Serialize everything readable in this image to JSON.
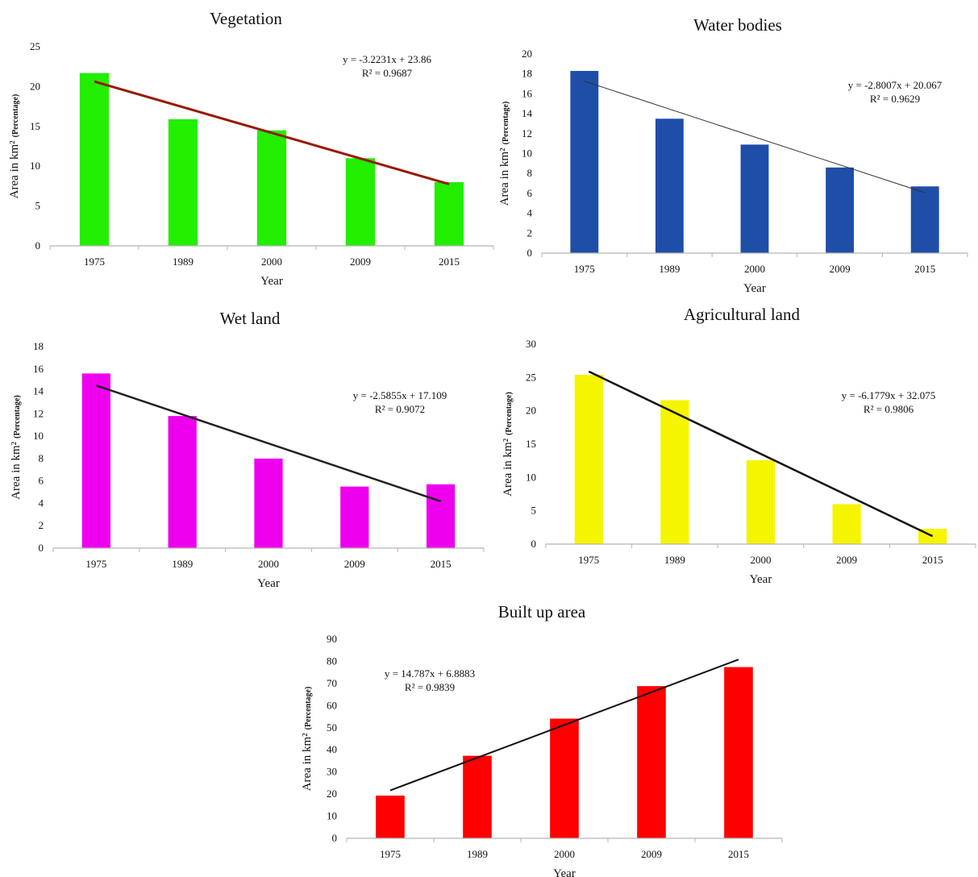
{
  "chart_data": [
    {
      "type": "bar",
      "title": "Vegetation",
      "categories": [
        "1975",
        "1989",
        "2000",
        "2009",
        "2015"
      ],
      "values": [
        21.7,
        15.9,
        14.5,
        11.0,
        8.0
      ],
      "xlabel": "Year",
      "ylabel": "Area in km²",
      "ylabel_suffix": "(Percentage)",
      "ylim": [
        0,
        25
      ],
      "yticks": [
        0,
        5,
        10,
        15,
        20,
        25
      ],
      "bar_color": "#22ee00",
      "trendline": {
        "slope": -3.2231,
        "intercept": 23.86,
        "color": "#9a1800",
        "width": 3
      },
      "equation": "y = -3.2231x + 23.86",
      "r_squared": "R² = 0.9687",
      "grid": false
    },
    {
      "type": "bar",
      "title": "Water bodies",
      "categories": [
        "1975",
        "1989",
        "2000",
        "2009",
        "2015"
      ],
      "values": [
        18.3,
        13.5,
        10.9,
        8.6,
        6.7
      ],
      "xlabel": "Year",
      "ylabel": "Area in km²",
      "ylabel_suffix": "(Percentage)",
      "ylim": [
        0,
        20
      ],
      "yticks": [
        0,
        2,
        4,
        6,
        8,
        10,
        12,
        14,
        16,
        18,
        20
      ],
      "bar_color": "#1f4ea8",
      "trendline": {
        "slope": -2.8007,
        "intercept": 20.067,
        "color": "#333333",
        "width": 1
      },
      "equation": "y = -2.8007x + 20.067",
      "r_squared": "R² = 0.9629",
      "grid": false
    },
    {
      "type": "bar",
      "title": "Wet land",
      "categories": [
        "1975",
        "1989",
        "2000",
        "2009",
        "2015"
      ],
      "values": [
        15.6,
        11.8,
        8.0,
        5.5,
        5.7
      ],
      "xlabel": "Year",
      "ylabel": "Area in km²",
      "ylabel_suffix": "(Percentage)",
      "ylim": [
        0,
        18
      ],
      "yticks": [
        0,
        2,
        4,
        6,
        8,
        10,
        12,
        14,
        16,
        18
      ],
      "bar_color": "#ee00ee",
      "trendline": {
        "slope": -2.5855,
        "intercept": 17.109,
        "color": "#222222",
        "width": 2.5
      },
      "equation": "y = -2.5855x + 17.109",
      "r_squared": "R² = 0.9072",
      "grid": false
    },
    {
      "type": "bar",
      "title": "Agricultural  land",
      "categories": [
        "1975",
        "1989",
        "2000",
        "2009",
        "2015"
      ],
      "values": [
        25.4,
        21.6,
        12.6,
        6.0,
        2.3
      ],
      "xlabel": "Year",
      "ylabel": "Area in km²",
      "ylabel_suffix": "(Percentage)",
      "ylim": [
        0,
        30
      ],
      "yticks": [
        0,
        5,
        10,
        15,
        20,
        25,
        30
      ],
      "bar_color": "#f5f500",
      "trendline": {
        "slope": -6.1779,
        "intercept": 32.075,
        "color": "#111111",
        "width": 2.5
      },
      "equation": "y = -6.1779x + 32.075",
      "r_squared": "R² = 0.9806",
      "grid": false
    },
    {
      "type": "bar",
      "title": "Built up area",
      "categories": [
        "1975",
        "1989",
        "2000",
        "2009",
        "2015"
      ],
      "values": [
        19.3,
        37.3,
        54.1,
        68.8,
        77.4
      ],
      "xlabel": "Year",
      "ylabel": "Area in km²",
      "ylabel_suffix": "(Percentage)",
      "ylim": [
        0,
        90
      ],
      "yticks": [
        0,
        10,
        20,
        30,
        40,
        50,
        60,
        70,
        80,
        90
      ],
      "bar_color": "#ff0000",
      "trendline": {
        "slope": 14.787,
        "intercept": 6.8883,
        "color": "#111111",
        "width": 2
      },
      "equation": "y = 14.787x + 6.8883",
      "r_squared": "R² = 0.9839",
      "grid": false
    }
  ]
}
